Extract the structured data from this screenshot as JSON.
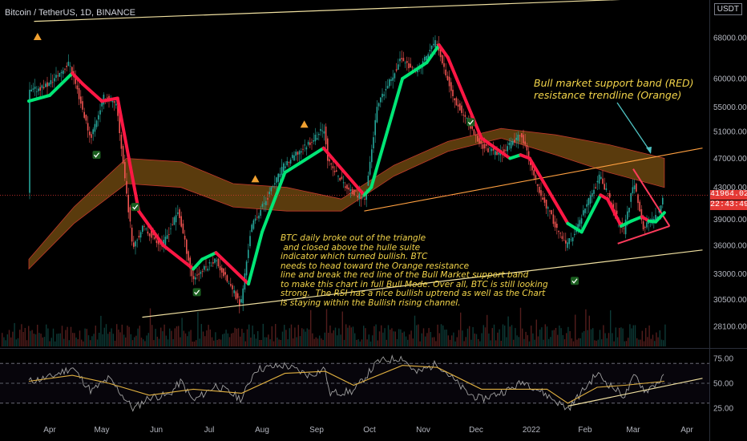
{
  "header": {
    "symbol_line": "Bitcoin / TetherUS, 1D, BINANCE",
    "currency_badge": "USDT"
  },
  "price_tag": {
    "price": "41964.02",
    "countdown": "22:43:49"
  },
  "annotations": {
    "band_note": "Bull market support band (RED)\nresistance trendline (Orange)",
    "analysis": "BTC daily broke out of the triangle\n and closed above the hulle suite\nindicator which turned bullish. BTC\nneeds to head toward the Orange resistance\nline and break the red line of the Bull Market support band\nto make this chart in full Bull Mode. Over all, BTC is still looking\nstrong.  The RSI has a nice bullish uptrend as well as the Chart\nis staying within the Bullish rising channel."
  },
  "colors": {
    "background": "#000000",
    "bull_candle": "#26a69a",
    "bear_candle": "#ef5350",
    "hull_bull": "#00e676",
    "hull_bear": "#ff1744",
    "band_fill": "#8a5a14",
    "channel_line": "#f0e0a0",
    "resistance_line": "#ffa040",
    "annotation": "#f2d44a",
    "rsi_line": "#a0a0a0",
    "rsi_ma": "#e0b040"
  },
  "chart_data": {
    "type": "candlestick",
    "x_tick_labels": [
      "Apr",
      "May",
      "Jun",
      "Jul",
      "Aug",
      "Sep",
      "Oct",
      "Nov",
      "Dec",
      "2022",
      "Feb",
      "Mar",
      "Apr"
    ],
    "price_axis_labels": [
      "68000.00",
      "60000.00",
      "55000.00",
      "51000.00",
      "47000.00",
      "43000.00",
      "39000.00",
      "36000.00",
      "33000.00",
      "30500.00",
      "28100.00"
    ],
    "price_scale": "log",
    "price_range": [
      26500,
      76000
    ],
    "price_series": [
      [
        "2021-03-20",
        57500
      ],
      [
        "2021-04-01",
        59000
      ],
      [
        "2021-04-13",
        63000
      ],
      [
        "2021-04-25",
        50000
      ],
      [
        "2021-05-03",
        57000
      ],
      [
        "2021-05-10",
        55000
      ],
      [
        "2021-05-19",
        36000
      ],
      [
        "2021-05-25",
        38000
      ],
      [
        "2021-06-05",
        36000
      ],
      [
        "2021-06-14",
        40000
      ],
      [
        "2021-06-22",
        32500
      ],
      [
        "2021-07-05",
        34500
      ],
      [
        "2021-07-20",
        30000
      ],
      [
        "2021-07-26",
        38000
      ],
      [
        "2021-08-14",
        46000
      ],
      [
        "2021-09-06",
        51500
      ],
      [
        "2021-09-08",
        46500
      ],
      [
        "2021-09-20",
        42500
      ],
      [
        "2021-09-29",
        41500
      ],
      [
        "2021-10-06",
        55000
      ],
      [
        "2021-10-20",
        64000
      ],
      [
        "2021-10-28",
        61000
      ],
      [
        "2021-11-09",
        67500
      ],
      [
        "2021-11-18",
        57000
      ],
      [
        "2021-12-04",
        49000
      ],
      [
        "2021-12-14",
        47500
      ],
      [
        "2021-12-27",
        50500
      ],
      [
        "2022-01-05",
        43000
      ],
      [
        "2022-01-21",
        36000
      ],
      [
        "2022-01-25",
        36800
      ],
      [
        "2022-02-10",
        44500
      ],
      [
        "2022-02-24",
        37500
      ],
      [
        "2022-03-02",
        44000
      ],
      [
        "2022-03-07",
        38000
      ],
      [
        "2022-03-15",
        39300
      ],
      [
        "2022-03-19",
        41964
      ]
    ],
    "hull_suite": [
      [
        "2021-03-20",
        56000,
        "bear"
      ],
      [
        "2021-04-01",
        57000,
        "bull"
      ],
      [
        "2021-04-14",
        61000,
        "bull"
      ],
      [
        "2021-04-20",
        59000,
        "bear"
      ],
      [
        "2021-05-01",
        56000,
        "bear"
      ],
      [
        "2021-05-10",
        56500,
        "bear"
      ],
      [
        "2021-05-22",
        40000,
        "bear"
      ],
      [
        "2021-06-05",
        36000,
        "bear"
      ],
      [
        "2021-06-22",
        33500,
        "bear"
      ],
      [
        "2021-06-27",
        34500,
        "bull"
      ],
      [
        "2021-07-05",
        35200,
        "bull"
      ],
      [
        "2021-07-12",
        34000,
        "bear"
      ],
      [
        "2021-07-24",
        32000,
        "bear"
      ],
      [
        "2021-08-01",
        37500,
        "bull"
      ],
      [
        "2021-08-14",
        45000,
        "bull"
      ],
      [
        "2021-09-05",
        48500,
        "bull"
      ],
      [
        "2021-09-10",
        47000,
        "bear"
      ],
      [
        "2021-09-28",
        42000,
        "bear"
      ],
      [
        "2021-10-02",
        43000,
        "bull"
      ],
      [
        "2021-10-20",
        60000,
        "bull"
      ],
      [
        "2021-11-03",
        63000,
        "bull"
      ],
      [
        "2021-11-10",
        66500,
        "bull"
      ],
      [
        "2021-11-15",
        64000,
        "bear"
      ],
      [
        "2021-12-04",
        50000,
        "bear"
      ],
      [
        "2021-12-20",
        47000,
        "bear"
      ],
      [
        "2021-12-26",
        47500,
        "bull"
      ],
      [
        "2021-12-31",
        47000,
        "bear"
      ],
      [
        "2022-01-22",
        38500,
        "bear"
      ],
      [
        "2022-01-30",
        37500,
        "bull"
      ],
      [
        "2022-02-10",
        42000,
        "bull"
      ],
      [
        "2022-02-14",
        41500,
        "bear"
      ],
      [
        "2022-02-22",
        38200,
        "bear"
      ],
      [
        "2022-02-28",
        38800,
        "bull"
      ],
      [
        "2022-03-06",
        39300,
        "bull"
      ],
      [
        "2022-03-10",
        38800,
        "bear"
      ],
      [
        "2022-03-14",
        38700,
        "bull"
      ],
      [
        "2022-03-19",
        39800,
        "bull"
      ]
    ],
    "bull_market_band": [
      [
        "2021-03-20",
        33500,
        34500
      ],
      [
        "2021-04-15",
        38500,
        40500
      ],
      [
        "2021-05-15",
        43500,
        47000
      ],
      [
        "2021-06-15",
        43000,
        46500
      ],
      [
        "2021-07-15",
        40500,
        43500
      ],
      [
        "2021-08-15",
        40000,
        43000
      ],
      [
        "2021-09-15",
        40000,
        41500
      ],
      [
        "2021-10-15",
        44500,
        46000
      ],
      [
        "2021-11-15",
        48000,
        49500
      ],
      [
        "2021-12-15",
        50000,
        51500
      ],
      [
        "2022-01-15",
        47500,
        50500
      ],
      [
        "2022-02-15",
        45000,
        49000
      ],
      [
        "2022-03-19",
        43000,
        47000
      ]
    ],
    "trendlines": [
      {
        "name": "channel_top",
        "points": [
          [
            "2021-03-23",
            71500
          ],
          [
            "2022-03-31",
            77000
          ]
        ]
      },
      {
        "name": "channel_bottom",
        "points": [
          [
            "2021-05-24",
            28900
          ],
          [
            "2022-04-10",
            35500
          ]
        ]
      },
      {
        "name": "orange_resistance",
        "points": [
          [
            "2021-09-28",
            40000
          ],
          [
            "2022-04-10",
            48500
          ]
        ]
      },
      {
        "name": "triangle_upper",
        "points": [
          [
            "2022-03-01",
            45500
          ],
          [
            "2022-03-22",
            38200
          ]
        ]
      },
      {
        "name": "triangle_lower",
        "points": [
          [
            "2022-02-20",
            36200
          ],
          [
            "2022-03-22",
            38200
          ]
        ]
      }
    ],
    "rsi": {
      "axis_labels": [
        "75.00",
        "50.00",
        "25.00"
      ],
      "levels": [
        70,
        50,
        30
      ],
      "range": [
        20,
        80
      ],
      "values": [
        [
          "2021-03-20",
          52
        ],
        [
          "2021-04-01",
          56
        ],
        [
          "2021-04-14",
          66
        ],
        [
          "2021-04-25",
          42
        ],
        [
          "2021-05-05",
          55
        ],
        [
          "2021-05-19",
          24
        ],
        [
          "2021-05-28",
          36
        ],
        [
          "2021-06-08",
          38
        ],
        [
          "2021-06-15",
          52
        ],
        [
          "2021-06-22",
          32
        ],
        [
          "2021-07-05",
          48
        ],
        [
          "2021-07-20",
          34
        ],
        [
          "2021-07-28",
          64
        ],
        [
          "2021-08-14",
          68
        ],
        [
          "2021-08-28",
          58
        ],
        [
          "2021-09-06",
          65
        ],
        [
          "2021-09-08",
          40
        ],
        [
          "2021-09-22",
          42
        ],
        [
          "2021-10-06",
          72
        ],
        [
          "2021-10-20",
          76
        ],
        [
          "2021-10-28",
          60
        ],
        [
          "2021-11-09",
          70
        ],
        [
          "2021-11-26",
          40
        ],
        [
          "2021-12-04",
          34
        ],
        [
          "2021-12-20",
          44
        ],
        [
          "2021-12-28",
          52
        ],
        [
          "2022-01-10",
          38
        ],
        [
          "2022-01-22",
          24
        ],
        [
          "2022-02-08",
          60
        ],
        [
          "2022-02-14",
          50
        ],
        [
          "2022-02-24",
          37
        ],
        [
          "2022-03-02",
          58
        ],
        [
          "2022-03-08",
          42
        ],
        [
          "2022-03-19",
          56
        ]
      ],
      "ma": [
        [
          "2021-03-20",
          52
        ],
        [
          "2021-04-14",
          58
        ],
        [
          "2021-05-05",
          50
        ],
        [
          "2021-05-28",
          38
        ],
        [
          "2021-06-22",
          44
        ],
        [
          "2021-07-20",
          40
        ],
        [
          "2021-08-14",
          60
        ],
        [
          "2021-09-06",
          62
        ],
        [
          "2021-09-22",
          48
        ],
        [
          "2021-10-20",
          68
        ],
        [
          "2021-11-09",
          66
        ],
        [
          "2021-12-04",
          44
        ],
        [
          "2022-01-10",
          44
        ],
        [
          "2022-01-22",
          30
        ],
        [
          "2022-02-08",
          46
        ],
        [
          "2022-02-24",
          48
        ],
        [
          "2022-03-19",
          52
        ]
      ],
      "trendline": [
        [
          "2022-01-22",
          27
        ],
        [
          "2022-04-10",
          55
        ]
      ]
    }
  }
}
